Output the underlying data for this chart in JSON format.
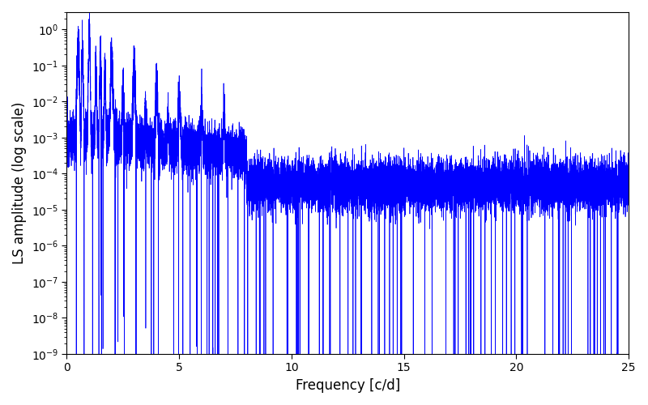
{
  "title": "",
  "xlabel": "Frequency [c/d]",
  "ylabel": "LS amplitude (log scale)",
  "xlim": [
    0,
    25
  ],
  "ylim": [
    1e-09,
    3.0
  ],
  "line_color": "#0000ff",
  "line_width": 0.5,
  "yscale": "log",
  "figsize": [
    8.0,
    5.0
  ],
  "dpi": 100,
  "background_color": "#ffffff",
  "freq_max": 25.0,
  "num_points": 15000,
  "seed": 12345
}
